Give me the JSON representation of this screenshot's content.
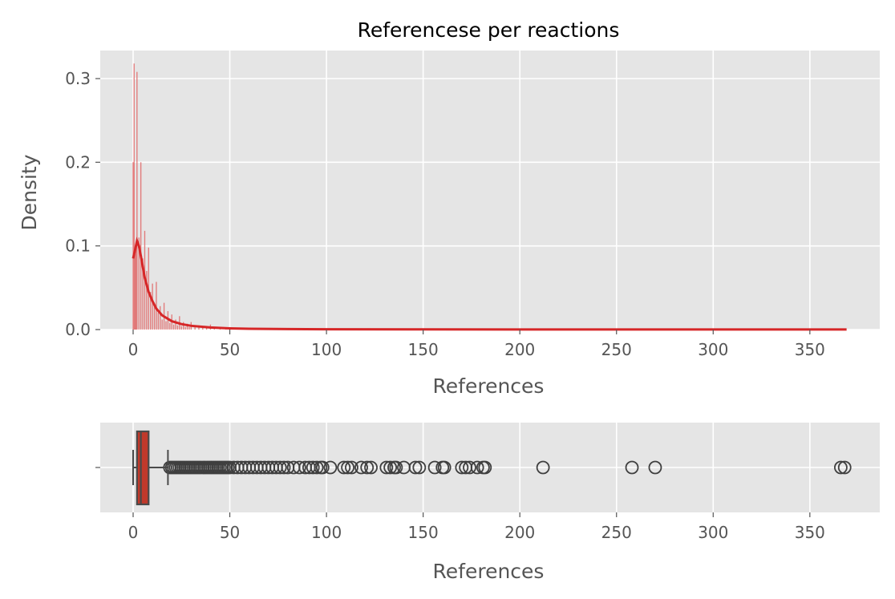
{
  "colors": {
    "panel_bg": "#e5e5e5",
    "grid": "#ffffff",
    "hist_bar": "#e06666",
    "kde_line": "#d62728",
    "box_fill": "#c0392b",
    "box_edge": "#4a4a4a",
    "outlier": "#3f3f3f",
    "tick_text": "#555555"
  },
  "chart_data": [
    {
      "type": "histogram",
      "title": "Referencese per reactions",
      "xlabel": "References",
      "ylabel": "Density",
      "xlim": [
        -12,
        388
      ],
      "ylim": [
        0,
        0.33
      ],
      "xticks": [
        0,
        50,
        100,
        150,
        200,
        250,
        300,
        350
      ],
      "yticks": [
        0.0,
        0.1,
        0.2,
        0.3
      ],
      "ytick_labels": [
        "0.0",
        "0.1",
        "0.2",
        "0.3"
      ],
      "grid": true,
      "bars": [
        {
          "x": 0,
          "density": 0.2
        },
        {
          "x": 0.5,
          "density": 0.318
        },
        {
          "x": 1,
          "density": 0.09
        },
        {
          "x": 1.5,
          "density": 0.1
        },
        {
          "x": 2,
          "density": 0.308
        },
        {
          "x": 3,
          "density": 0.11
        },
        {
          "x": 4,
          "density": 0.2
        },
        {
          "x": 5,
          "density": 0.085
        },
        {
          "x": 6,
          "density": 0.118
        },
        {
          "x": 7,
          "density": 0.07
        },
        {
          "x": 8,
          "density": 0.098
        },
        {
          "x": 9,
          "density": 0.045
        },
        {
          "x": 10,
          "density": 0.055
        },
        {
          "x": 11,
          "density": 0.032
        },
        {
          "x": 12,
          "density": 0.057
        },
        {
          "x": 13,
          "density": 0.02
        },
        {
          "x": 14,
          "density": 0.028
        },
        {
          "x": 15,
          "density": 0.012
        },
        {
          "x": 16,
          "density": 0.032
        },
        {
          "x": 17,
          "density": 0.01
        },
        {
          "x": 18,
          "density": 0.022
        },
        {
          "x": 19,
          "density": 0.008
        },
        {
          "x": 20,
          "density": 0.018
        },
        {
          "x": 21,
          "density": 0.006
        },
        {
          "x": 22,
          "density": 0.012
        },
        {
          "x": 23,
          "density": 0.005
        },
        {
          "x": 24,
          "density": 0.016
        },
        {
          "x": 25,
          "density": 0.004
        },
        {
          "x": 26,
          "density": 0.009
        },
        {
          "x": 27,
          "density": 0.003
        },
        {
          "x": 28,
          "density": 0.007
        },
        {
          "x": 29,
          "density": 0.003
        },
        {
          "x": 30,
          "density": 0.009
        },
        {
          "x": 32,
          "density": 0.004
        },
        {
          "x": 34,
          "density": 0.005
        },
        {
          "x": 36,
          "density": 0.003
        },
        {
          "x": 38,
          "density": 0.004
        },
        {
          "x": 40,
          "density": 0.006
        },
        {
          "x": 42,
          "density": 0.003
        },
        {
          "x": 45,
          "density": 0.002
        },
        {
          "x": 48,
          "density": 0.002
        },
        {
          "x": 52,
          "density": 0.0015
        },
        {
          "x": 56,
          "density": 0.001
        },
        {
          "x": 60,
          "density": 0.001
        },
        {
          "x": 65,
          "density": 0.0008
        },
        {
          "x": 70,
          "density": 0.0006
        },
        {
          "x": 80,
          "density": 0.0005
        },
        {
          "x": 90,
          "density": 0.0004
        },
        {
          "x": 100,
          "density": 0.0003
        }
      ],
      "kde": {
        "x": [
          0,
          1,
          2,
          3,
          4,
          5,
          6,
          8,
          10,
          12,
          15,
          20,
          25,
          30,
          40,
          50,
          60,
          80,
          100,
          150,
          200,
          250,
          300,
          369
        ],
        "y": [
          0.085,
          0.095,
          0.106,
          0.1,
          0.088,
          0.075,
          0.062,
          0.045,
          0.034,
          0.025,
          0.017,
          0.01,
          0.0065,
          0.0045,
          0.0025,
          0.0015,
          0.001,
          0.0006,
          0.0004,
          0.0002,
          0.0001,
          0.0001,
          0.0001,
          0.0001
        ]
      }
    },
    {
      "type": "box",
      "xlabel": "References",
      "ytick_labels": [
        ""
      ],
      "xlim": [
        -12,
        388
      ],
      "xticks": [
        0,
        50,
        100,
        150,
        200,
        250,
        300,
        350
      ],
      "grid": true,
      "whisker_low": 0,
      "q1": 2,
      "median": 4,
      "q3": 8,
      "whisker_high": 18,
      "outliers": [
        19,
        20,
        21,
        22,
        23,
        24,
        25,
        26,
        27,
        28,
        29,
        30,
        31,
        32,
        33,
        34,
        35,
        36,
        37,
        38,
        39,
        40,
        41,
        42,
        43,
        44,
        45,
        46,
        47,
        48,
        49,
        50,
        52,
        54,
        56,
        58,
        60,
        62,
        64,
        66,
        68,
        70,
        72,
        74,
        76,
        78,
        80,
        83,
        86,
        89,
        91,
        93,
        95,
        97,
        98,
        102,
        109,
        111,
        113,
        118,
        121,
        123,
        131,
        133,
        135,
        136,
        140,
        146,
        148,
        156,
        160,
        161,
        170,
        172,
        174,
        178,
        181,
        182,
        212,
        258,
        270,
        366,
        368
      ]
    }
  ]
}
